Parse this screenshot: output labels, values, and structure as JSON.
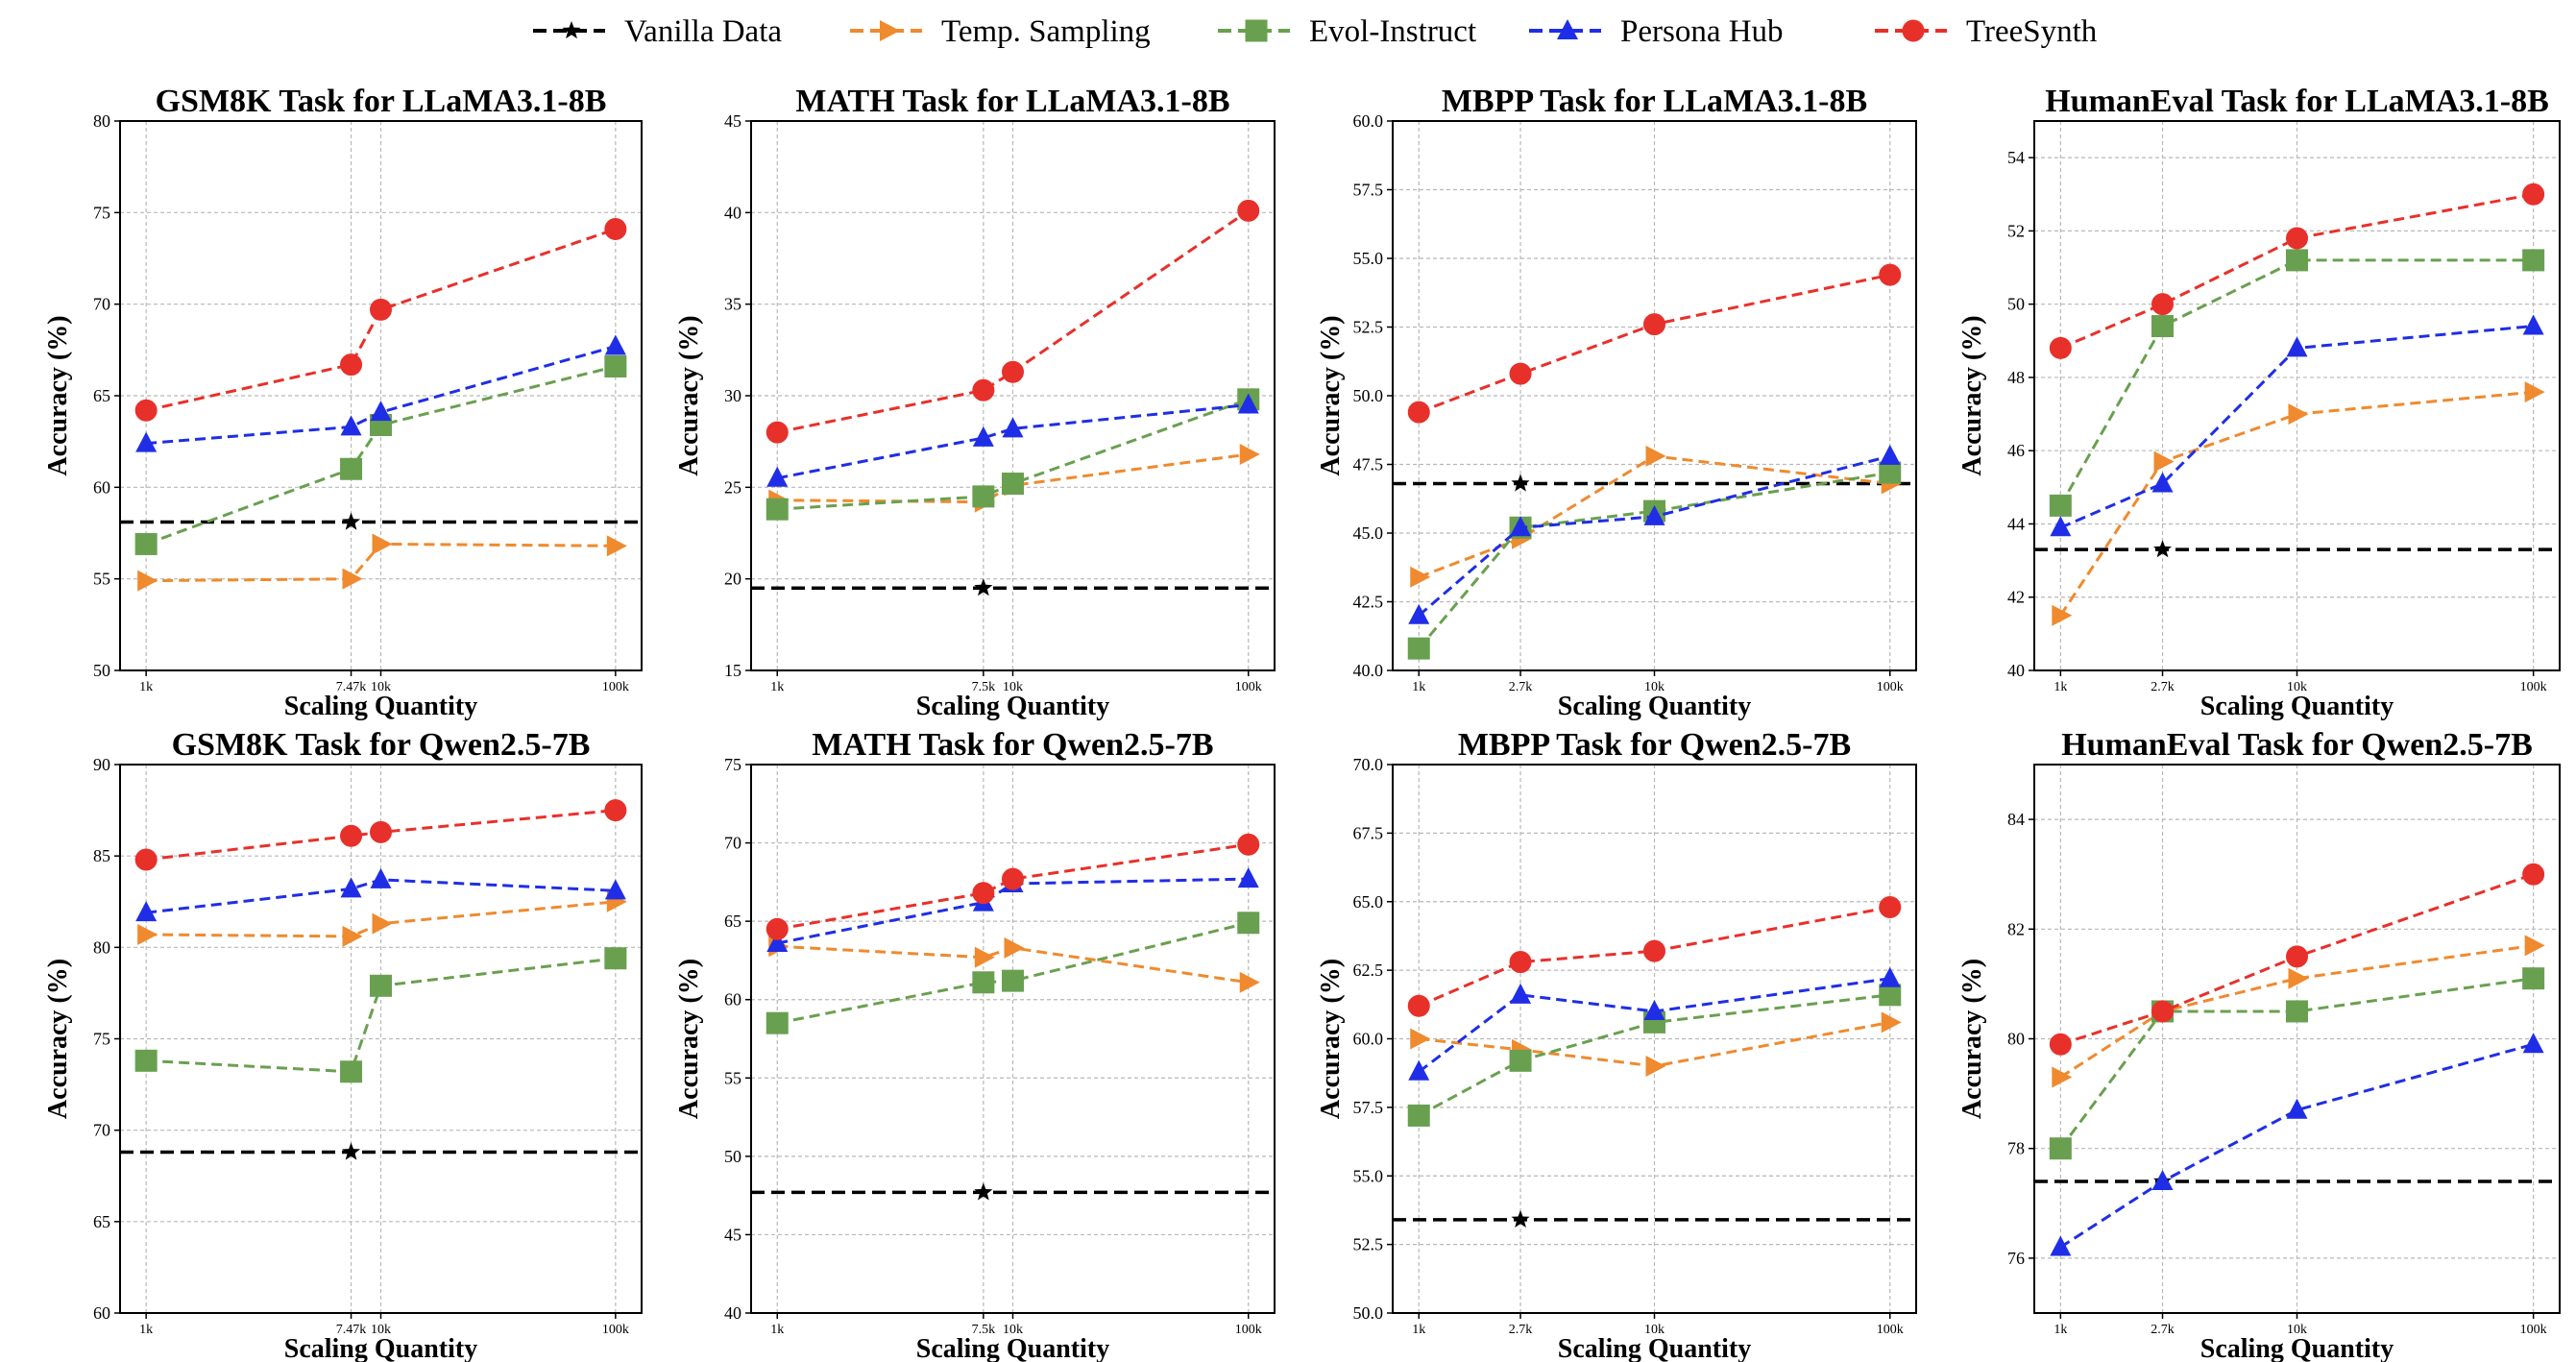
{
  "legend": [
    {
      "name": "Vanilla Data",
      "color": "#000000",
      "marker": "star",
      "dash": "dashed"
    },
    {
      "name": "Temp. Sampling",
      "color": "#ef8a2e",
      "marker": "triangle-right",
      "dash": "dashed"
    },
    {
      "name": "Evol-Instruct",
      "color": "#69a050",
      "marker": "square",
      "dash": "dashed"
    },
    {
      "name": "Persona Hub",
      "color": "#1f2ee6",
      "marker": "triangle-up",
      "dash": "dashed"
    },
    {
      "name": "TreeSynth",
      "color": "#e8302a",
      "marker": "circle",
      "dash": "dashed"
    }
  ],
  "chart_data": [
    {
      "type": "line",
      "title": "GSM8K Task for LLaMA3.1-8B",
      "xlabel": "Scaling Quantity",
      "ylabel": "Accuracy (%)",
      "xscale": "log",
      "xlim": [
        1000,
        100000
      ],
      "xticks": [
        {
          "v": 1000,
          "l": "1k"
        },
        {
          "v": 7470,
          "l": "7.47k"
        },
        {
          "v": 10000,
          "l": "10k"
        },
        {
          "v": 100000,
          "l": "100k"
        }
      ],
      "ylim": [
        50,
        80
      ],
      "yticks": [
        50,
        55,
        60,
        65,
        70,
        75,
        80
      ],
      "ydec": 0,
      "vanilla": {
        "x": 7470,
        "y": 58.1
      },
      "series": [
        {
          "name": "Temp. Sampling",
          "x": [
            1000,
            7470,
            10000,
            100000
          ],
          "y": [
            54.9,
            55.0,
            56.9,
            56.8
          ]
        },
        {
          "name": "Evol-Instruct",
          "x": [
            1000,
            7470,
            10000,
            100000
          ],
          "y": [
            56.9,
            61.0,
            63.4,
            66.6
          ]
        },
        {
          "name": "Persona Hub",
          "x": [
            1000,
            7470,
            10000,
            100000
          ],
          "y": [
            62.4,
            63.3,
            64.1,
            67.7
          ]
        },
        {
          "name": "TreeSynth",
          "x": [
            1000,
            7470,
            10000,
            100000
          ],
          "y": [
            64.2,
            66.7,
            69.7,
            74.1
          ]
        }
      ]
    },
    {
      "type": "line",
      "title": "MATH Task for LLaMA3.1-8B",
      "xlabel": "Scaling Quantity",
      "ylabel": "Accuracy (%)",
      "xscale": "log",
      "xlim": [
        1000,
        100000
      ],
      "xticks": [
        {
          "v": 1000,
          "l": "1k"
        },
        {
          "v": 7500,
          "l": "7.5k"
        },
        {
          "v": 10000,
          "l": "10k"
        },
        {
          "v": 100000,
          "l": "100k"
        }
      ],
      "ylim": [
        15,
        45
      ],
      "yticks": [
        15,
        20,
        25,
        30,
        35,
        40,
        45
      ],
      "ydec": 0,
      "vanilla": {
        "x": 7500,
        "y": 19.5
      },
      "series": [
        {
          "name": "Temp. Sampling",
          "x": [
            1000,
            7500,
            10000,
            100000
          ],
          "y": [
            24.3,
            24.2,
            25.1,
            26.8
          ]
        },
        {
          "name": "Evol-Instruct",
          "x": [
            1000,
            7500,
            10000,
            100000
          ],
          "y": [
            23.8,
            24.5,
            25.2,
            29.8
          ]
        },
        {
          "name": "Persona Hub",
          "x": [
            1000,
            7500,
            10000,
            100000
          ],
          "y": [
            25.5,
            27.7,
            28.2,
            29.5
          ]
        },
        {
          "name": "TreeSynth",
          "x": [
            1000,
            7500,
            10000,
            100000
          ],
          "y": [
            28.0,
            30.3,
            31.3,
            40.1
          ]
        }
      ]
    },
    {
      "type": "line",
      "title": "MBPP Task for LLaMA3.1-8B",
      "xlabel": "Scaling Quantity",
      "ylabel": "Accuracy (%)",
      "xscale": "log",
      "xlim": [
        1000,
        100000
      ],
      "xticks": [
        {
          "v": 1000,
          "l": "1k"
        },
        {
          "v": 2700,
          "l": "2.7k"
        },
        {
          "v": 10000,
          "l": "10k"
        },
        {
          "v": 100000,
          "l": "100k"
        }
      ],
      "ylim": [
        40,
        60
      ],
      "yticks": [
        40,
        42.5,
        45,
        47.5,
        50,
        52.5,
        55,
        57.5,
        60
      ],
      "ydec": 1,
      "vanilla": {
        "x": 2700,
        "y": 46.8
      },
      "series": [
        {
          "name": "Temp. Sampling",
          "x": [
            1000,
            2700,
            10000,
            100000
          ],
          "y": [
            43.4,
            44.8,
            47.8,
            46.8
          ]
        },
        {
          "name": "Evol-Instruct",
          "x": [
            1000,
            2700,
            10000,
            100000
          ],
          "y": [
            40.8,
            45.2,
            45.8,
            47.2
          ]
        },
        {
          "name": "Persona Hub",
          "x": [
            1000,
            2700,
            10000,
            100000
          ],
          "y": [
            42.0,
            45.2,
            45.6,
            47.8
          ]
        },
        {
          "name": "TreeSynth",
          "x": [
            1000,
            2700,
            10000,
            100000
          ],
          "y": [
            49.4,
            50.8,
            52.6,
            54.4
          ]
        }
      ]
    },
    {
      "type": "line",
      "title": "HumanEval Task for LLaMA3.1-8B",
      "xlabel": "Scaling Quantity",
      "ylabel": "Accuracy (%)",
      "xscale": "log",
      "xlim": [
        1000,
        100000
      ],
      "xticks": [
        {
          "v": 1000,
          "l": "1k"
        },
        {
          "v": 2700,
          "l": "2.7k"
        },
        {
          "v": 10000,
          "l": "10k"
        },
        {
          "v": 100000,
          "l": "100k"
        }
      ],
      "ylim": [
        40,
        55
      ],
      "yticks": [
        40,
        42,
        44,
        46,
        48,
        50,
        52,
        54
      ],
      "ydec": 0,
      "vanilla": {
        "x": 2700,
        "y": 43.3
      },
      "series": [
        {
          "name": "Temp. Sampling",
          "x": [
            1000,
            2700,
            10000,
            100000
          ],
          "y": [
            41.5,
            45.7,
            47.0,
            47.6
          ]
        },
        {
          "name": "Evol-Instruct",
          "x": [
            1000,
            2700,
            10000,
            100000
          ],
          "y": [
            44.5,
            49.4,
            51.2,
            51.2
          ]
        },
        {
          "name": "Persona Hub",
          "x": [
            1000,
            2700,
            10000,
            100000
          ],
          "y": [
            43.9,
            45.1,
            48.8,
            49.4
          ]
        },
        {
          "name": "TreeSynth",
          "x": [
            1000,
            2700,
            10000,
            100000
          ],
          "y": [
            48.8,
            50.0,
            51.8,
            53.0
          ]
        }
      ]
    },
    {
      "type": "line",
      "title": "GSM8K Task for Qwen2.5-7B",
      "xlabel": "Scaling Quantity",
      "ylabel": "Accuracy (%)",
      "xscale": "log",
      "xlim": [
        1000,
        100000
      ],
      "xticks": [
        {
          "v": 1000,
          "l": "1k"
        },
        {
          "v": 7470,
          "l": "7.47k"
        },
        {
          "v": 10000,
          "l": "10k"
        },
        {
          "v": 100000,
          "l": "100k"
        }
      ],
      "ylim": [
        60,
        90
      ],
      "yticks": [
        60,
        65,
        70,
        75,
        80,
        85,
        90
      ],
      "ydec": 0,
      "vanilla": {
        "x": 7470,
        "y": 68.8
      },
      "series": [
        {
          "name": "Temp. Sampling",
          "x": [
            1000,
            7470,
            10000,
            100000
          ],
          "y": [
            80.7,
            80.6,
            81.3,
            82.5
          ]
        },
        {
          "name": "Evol-Instruct",
          "x": [
            1000,
            7470,
            10000,
            100000
          ],
          "y": [
            73.8,
            73.2,
            77.9,
            79.4
          ]
        },
        {
          "name": "Persona Hub",
          "x": [
            1000,
            7470,
            10000,
            100000
          ],
          "y": [
            81.9,
            83.2,
            83.7,
            83.1
          ]
        },
        {
          "name": "TreeSynth",
          "x": [
            1000,
            7470,
            10000,
            100000
          ],
          "y": [
            84.8,
            86.1,
            86.3,
            87.5
          ]
        }
      ]
    },
    {
      "type": "line",
      "title": "MATH Task for Qwen2.5-7B",
      "xlabel": "Scaling Quantity",
      "ylabel": "Accuracy (%)",
      "xscale": "log",
      "xlim": [
        1000,
        100000
      ],
      "xticks": [
        {
          "v": 1000,
          "l": "1k"
        },
        {
          "v": 7500,
          "l": "7.5k"
        },
        {
          "v": 10000,
          "l": "10k"
        },
        {
          "v": 100000,
          "l": "100k"
        }
      ],
      "ylim": [
        40,
        75
      ],
      "yticks": [
        40,
        45,
        50,
        55,
        60,
        65,
        70,
        75
      ],
      "ydec": 0,
      "vanilla": {
        "x": 7500,
        "y": 47.7
      },
      "series": [
        {
          "name": "Temp. Sampling",
          "x": [
            1000,
            7500,
            10000,
            100000
          ],
          "y": [
            63.4,
            62.7,
            63.3,
            61.1
          ]
        },
        {
          "name": "Evol-Instruct",
          "x": [
            1000,
            7500,
            10000,
            100000
          ],
          "y": [
            58.5,
            61.1,
            61.2,
            64.9
          ]
        },
        {
          "name": "Persona Hub",
          "x": [
            1000,
            7500,
            10000,
            100000
          ],
          "y": [
            63.6,
            66.2,
            67.4,
            67.7
          ]
        },
        {
          "name": "TreeSynth",
          "x": [
            1000,
            7500,
            10000,
            100000
          ],
          "y": [
            64.5,
            66.8,
            67.7,
            69.9
          ]
        }
      ]
    },
    {
      "type": "line",
      "title": "MBPP Task for Qwen2.5-7B",
      "xlabel": "Scaling Quantity",
      "ylabel": "Accuracy (%)",
      "xscale": "log",
      "xlim": [
        1000,
        100000
      ],
      "xticks": [
        {
          "v": 1000,
          "l": "1k"
        },
        {
          "v": 2700,
          "l": "2.7k"
        },
        {
          "v": 10000,
          "l": "10k"
        },
        {
          "v": 100000,
          "l": "100k"
        }
      ],
      "ylim": [
        50,
        70
      ],
      "yticks": [
        50,
        52.5,
        55,
        57.5,
        60,
        62.5,
        65,
        67.5,
        70
      ],
      "ydec": 1,
      "vanilla": {
        "x": 2700,
        "y": 53.4
      },
      "series": [
        {
          "name": "Temp. Sampling",
          "x": [
            1000,
            2700,
            10000,
            100000
          ],
          "y": [
            60.0,
            59.6,
            59.0,
            60.6
          ]
        },
        {
          "name": "Evol-Instruct",
          "x": [
            1000,
            2700,
            10000,
            100000
          ],
          "y": [
            57.2,
            59.2,
            60.6,
            61.6
          ]
        },
        {
          "name": "Persona Hub",
          "x": [
            1000,
            2700,
            10000,
            100000
          ],
          "y": [
            58.8,
            61.6,
            61.0,
            62.2
          ]
        },
        {
          "name": "TreeSynth",
          "x": [
            1000,
            2700,
            10000,
            100000
          ],
          "y": [
            61.2,
            62.8,
            63.2,
            64.8
          ]
        }
      ]
    },
    {
      "type": "line",
      "title": "HumanEval Task for Qwen2.5-7B",
      "xlabel": "Scaling Quantity",
      "ylabel": "Accuracy (%)",
      "xscale": "log",
      "xlim": [
        1000,
        100000
      ],
      "xticks": [
        {
          "v": 1000,
          "l": "1k"
        },
        {
          "v": 2700,
          "l": "2.7k"
        },
        {
          "v": 10000,
          "l": "10k"
        },
        {
          "v": 100000,
          "l": "100k"
        }
      ],
      "ylim": [
        75,
        85
      ],
      "yticks": [
        76,
        78,
        80,
        82,
        84
      ],
      "ydec": 0,
      "vanilla": {
        "x": 2700,
        "y": 77.4
      },
      "series": [
        {
          "name": "Temp. Sampling",
          "x": [
            1000,
            2700,
            10000,
            100000
          ],
          "y": [
            79.3,
            80.5,
            81.1,
            81.7
          ]
        },
        {
          "name": "Evol-Instruct",
          "x": [
            1000,
            2700,
            10000,
            100000
          ],
          "y": [
            78.0,
            80.5,
            80.5,
            81.1
          ]
        },
        {
          "name": "Persona Hub",
          "x": [
            1000,
            2700,
            10000,
            100000
          ],
          "y": [
            76.2,
            77.4,
            78.7,
            79.9
          ]
        },
        {
          "name": "TreeSynth",
          "x": [
            1000,
            2700,
            10000,
            100000
          ],
          "y": [
            79.9,
            80.5,
            81.5,
            83.0
          ]
        }
      ]
    }
  ]
}
